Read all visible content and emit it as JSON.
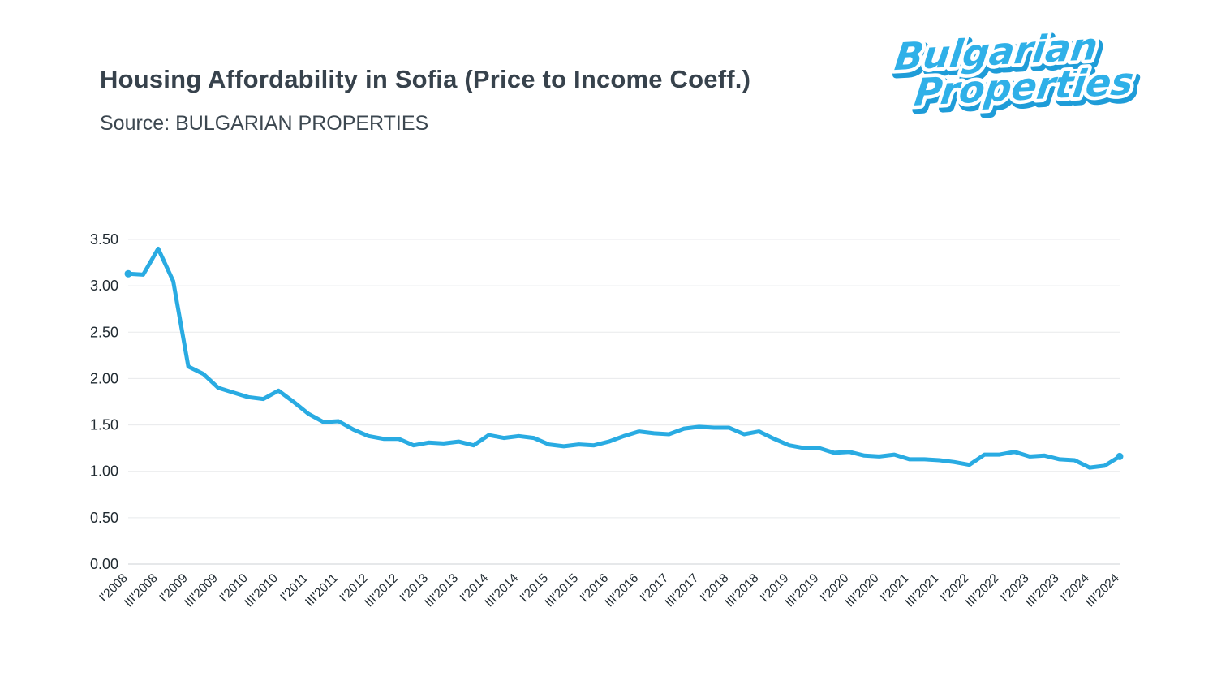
{
  "header": {
    "title": "Housing Affordability in Sofia (Price to Income Coeff.)",
    "source": "Source: BULGARIAN PROPERTIES"
  },
  "logo": {
    "line1": "Bulgarian",
    "line2": "Properties",
    "brand_color": "#2fb0e8"
  },
  "chart_data": {
    "type": "line",
    "title": "Housing Affordability in Sofia (Price to Income Coeff.)",
    "xlabel": "",
    "ylabel": "",
    "ylim": [
      0,
      3.5
    ],
    "yticks": [
      0.0,
      0.5,
      1.0,
      1.5,
      2.0,
      2.5,
      3.0,
      3.5
    ],
    "grid": true,
    "legend": "none",
    "line_color": "#29abe2",
    "tick_label_every": 2,
    "quarters": [
      "I'2008",
      "II'2008",
      "III'2008",
      "IV'2008",
      "I'2009",
      "II'2009",
      "III'2009",
      "IV'2009",
      "I'2010",
      "II'2010",
      "III'2010",
      "IV'2010",
      "I'2011",
      "II'2011",
      "III'2011",
      "IV'2011",
      "I'2012",
      "II'2012",
      "III'2012",
      "IV'2012",
      "I'2013",
      "II'2013",
      "III'2013",
      "IV'2013",
      "I'2014",
      "II'2014",
      "III'2014",
      "IV'2014",
      "I'2015",
      "II'2015",
      "III'2015",
      "IV'2015",
      "I'2016",
      "II'2016",
      "III'2016",
      "IV'2016",
      "I'2017",
      "II'2017",
      "III'2017",
      "IV'2017",
      "I'2018",
      "II'2018",
      "III'2018",
      "IV'2018",
      "I'2019",
      "II'2019",
      "III'2019",
      "IV'2019",
      "I'2020",
      "II'2020",
      "III'2020",
      "IV'2020",
      "I'2021",
      "II'2021",
      "III'2021",
      "IV'2021",
      "I'2022",
      "II'2022",
      "III'2022",
      "IV'2022",
      "I'2023",
      "II'2023",
      "III'2023",
      "IV'2023",
      "I'2024",
      "II'2024",
      "III'2024"
    ],
    "visible_tick_labels": [
      "I'2008",
      "III'2008",
      "I'2009",
      "III'2009",
      "I'2010",
      "III'2010",
      "I'2011",
      "III'2011",
      "I'2012",
      "III'2012",
      "I'2013",
      "III'2013",
      "I'2014",
      "III'2014",
      "I'2015",
      "III'2015",
      "I'2016",
      "III'2016",
      "I'2017",
      "III'2017",
      "I'2018",
      "III'2018",
      "I'2019",
      "III'2019",
      "I'2020",
      "III'2020",
      "I'2021",
      "III'2021",
      "I'2022",
      "III'2022",
      "I'2023",
      "III'2023",
      "I'2024",
      "III'2024"
    ],
    "series": [
      {
        "name": "Price to Income Coefficient",
        "values": [
          3.13,
          3.12,
          3.4,
          3.05,
          2.13,
          2.05,
          1.9,
          1.85,
          1.8,
          1.78,
          1.87,
          1.75,
          1.62,
          1.53,
          1.54,
          1.45,
          1.38,
          1.35,
          1.35,
          1.28,
          1.31,
          1.3,
          1.32,
          1.28,
          1.39,
          1.36,
          1.38,
          1.36,
          1.29,
          1.27,
          1.29,
          1.28,
          1.32,
          1.38,
          1.43,
          1.41,
          1.4,
          1.46,
          1.48,
          1.47,
          1.47,
          1.4,
          1.43,
          1.35,
          1.28,
          1.25,
          1.25,
          1.2,
          1.21,
          1.17,
          1.16,
          1.18,
          1.13,
          1.13,
          1.12,
          1.1,
          1.07,
          1.18,
          1.18,
          1.21,
          1.16,
          1.17,
          1.13,
          1.12,
          1.04,
          1.06,
          1.16
        ]
      }
    ]
  }
}
